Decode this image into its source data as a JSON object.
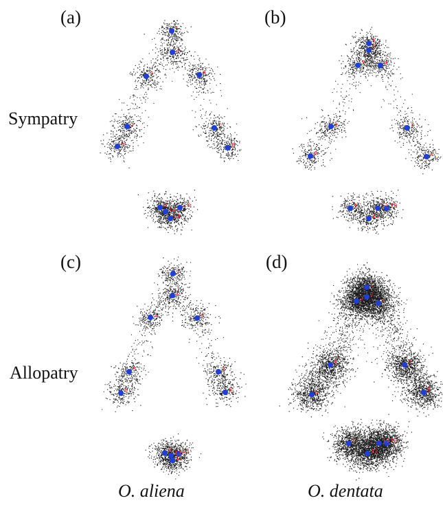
{
  "panel_labels": [
    "(a)",
    "(b)",
    "(c)",
    "(d)"
  ],
  "row_labels": [
    "Sympatry",
    "Allopatry"
  ],
  "species_labels": [
    "O. aliena",
    "O. dentata"
  ],
  "colors": {
    "scatter": "#1a1a1a",
    "landmark": "#1f3fd6",
    "landmark_number": "#e0302a"
  },
  "landmark_numbers": [
    "1",
    "2",
    "3",
    "4",
    "5",
    "6",
    "7",
    "8",
    "9",
    "10",
    "11",
    "12"
  ],
  "panels": [
    {
      "id": "a",
      "species": "O. aliena",
      "condition": "Sympatry",
      "spread": "low"
    },
    {
      "id": "b",
      "species": "O. dentata",
      "condition": "Sympatry",
      "spread": "low"
    },
    {
      "id": "c",
      "species": "O. aliena",
      "condition": "Allopatry",
      "spread": "low"
    },
    {
      "id": "d",
      "species": "O. dentata",
      "condition": "Allopatry",
      "spread": "high"
    }
  ]
}
